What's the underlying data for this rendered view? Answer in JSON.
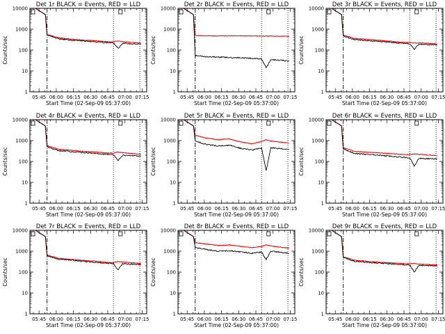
{
  "chart_data": [
    {
      "title": "Det 1r BLACK = Events, RED = LLD",
      "sep_mode": "rel",
      "events": [
        520,
        350,
        300,
        280,
        260,
        230,
        220,
        120,
        210,
        190
      ],
      "lld": [
        560,
        390,
        340,
        300,
        290,
        260,
        250,
        280,
        250,
        220
      ]
    },
    {
      "title": "Det 2r BLACK = Events, RED = LLD",
      "sep_mode": "rel",
      "events": [
        55,
        48,
        46,
        44,
        43,
        40,
        38,
        14,
        35,
        30
      ],
      "lld": [
        500,
        480,
        480,
        480,
        480,
        480,
        475,
        470,
        470,
        460
      ]
    },
    {
      "title": "Det 3r BLACK = Events, RED = LLD",
      "sep_mode": "rel",
      "events": [
        480,
        320,
        290,
        260,
        240,
        210,
        200,
        110,
        190,
        180
      ],
      "lld": [
        520,
        360,
        330,
        300,
        270,
        240,
        230,
        220,
        220,
        200
      ]
    },
    {
      "title": "Det 4r BLACK = Events, RED = LLD",
      "sep_mode": "rel",
      "events": [
        500,
        330,
        300,
        270,
        250,
        220,
        210,
        110,
        200,
        180
      ],
      "lld": [
        560,
        380,
        350,
        310,
        290,
        260,
        250,
        280,
        260,
        220
      ]
    },
    {
      "title": "Det 5r BLACK = Events, RED = LLD",
      "sep_mode": "rel",
      "events": [
        900,
        650,
        550,
        600,
        420,
        350,
        450,
        35,
        450,
        380
      ],
      "lld": [
        1800,
        1300,
        1100,
        1200,
        850,
        700,
        900,
        1100,
        950,
        750
      ]
    },
    {
      "title": "Det 6r BLACK = Events, RED = LLD",
      "sep_mode": "rel",
      "events": [
        400,
        240,
        220,
        200,
        180,
        160,
        150,
        60,
        140,
        130
      ],
      "lld": [
        450,
        300,
        280,
        260,
        240,
        220,
        210,
        230,
        220,
        190
      ]
    },
    {
      "title": "Det 7r BLACK = Events, RED = LLD",
      "sep_mode": "rel",
      "events": [
        600,
        420,
        380,
        330,
        300,
        270,
        250,
        130,
        250,
        230
      ],
      "lld": [
        650,
        460,
        410,
        370,
        340,
        300,
        280,
        330,
        300,
        260
      ]
    },
    {
      "title": "Det 8r BLACK = Events, RED = LLD",
      "sep_mode": "rel",
      "events": [
        1500,
        1200,
        1000,
        1050,
        900,
        800,
        900,
        400,
        1000,
        800
      ],
      "lld": [
        2600,
        2200,
        1900,
        2000,
        1700,
        1500,
        1700,
        2000,
        1800,
        1400
      ]
    },
    {
      "title": "Det 9r BLACK = Events, RED = LLD",
      "sep_mode": "rel",
      "events": [
        500,
        330,
        300,
        270,
        250,
        230,
        220,
        100,
        210,
        200
      ],
      "lld": [
        540,
        370,
        330,
        300,
        280,
        260,
        250,
        260,
        240,
        220
      ]
    }
  ],
  "chart_common": {
    "type": "line",
    "y_scale": "log",
    "ylim": [
      1,
      10000
    ],
    "ylabel": "Counts/sec",
    "xlabel": "Start Time (02-Sep-09 05:37:00)",
    "xticks": [
      "05:45",
      "06:00",
      "06:15",
      "06:30",
      "06:45",
      "07:00",
      "07:15"
    ],
    "xtick_minutes": [
      345,
      360,
      375,
      390,
      405,
      420,
      435
    ],
    "ytick_labels": [
      "1",
      "10",
      "100",
      "1000",
      "10000"
    ],
    "ytick_values": [
      1,
      10,
      100,
      1000,
      10000
    ],
    "xlim_minutes": [
      337,
      439
    ],
    "dashdot_minute": 352,
    "dot_minutes": [
      410,
      433
    ],
    "drop_minutes": [
      412,
      417
    ],
    "sample_minutes": [
      352,
      362,
      372,
      382,
      392,
      402,
      410,
      414,
      418,
      434
    ],
    "colors": {
      "events": "#000000",
      "lld": "#ff0000"
    }
  }
}
